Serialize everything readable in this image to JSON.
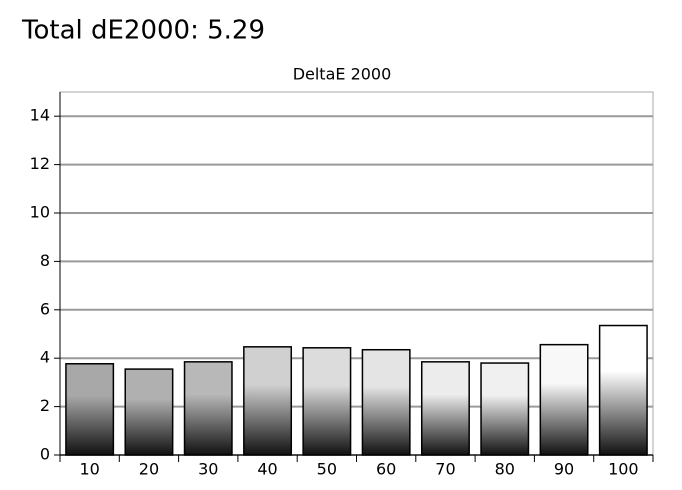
{
  "header": {
    "title": "Total dE2000: 5.29"
  },
  "chart_data": {
    "type": "bar",
    "title": "DeltaE 2000",
    "categories": [
      "10",
      "20",
      "30",
      "40",
      "50",
      "60",
      "70",
      "80",
      "90",
      "100"
    ],
    "values": [
      3.77,
      3.55,
      3.85,
      4.47,
      4.43,
      4.35,
      3.85,
      3.8,
      4.56,
      5.35
    ],
    "colors": [
      "#a8a8a8",
      "#b0b0b0",
      "#b8b8b8",
      "#d0d0d0",
      "#dcdcdc",
      "#e4e4e4",
      "#ececec",
      "#f0f0f0",
      "#f8f8f8",
      "#ffffff"
    ],
    "ylim": [
      0,
      15
    ],
    "yticks": [
      0,
      2,
      4,
      6,
      8,
      10,
      12,
      14
    ],
    "grid": true
  }
}
